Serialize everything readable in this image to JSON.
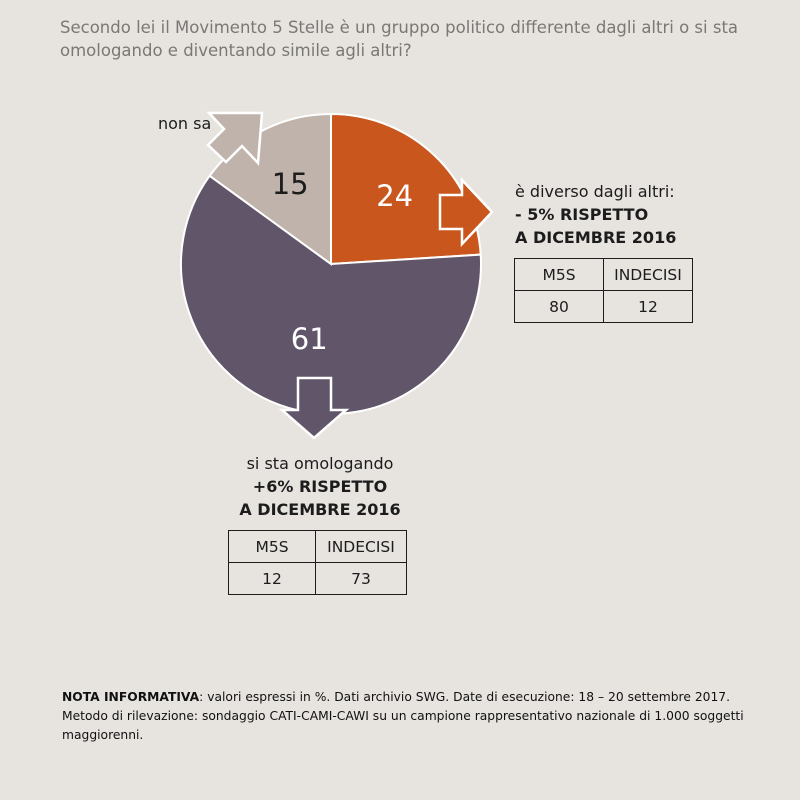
{
  "question": "Secondo lei il Movimento 5 Stelle è un gruppo politico differente dagli altri o si sta omologando e diventando simile agli altri?",
  "chart_data": {
    "type": "pie",
    "unit": "%",
    "slices": [
      {
        "label": "è diverso dagli altri",
        "value": 24,
        "color": "#c9561c"
      },
      {
        "label": "si sta omologando",
        "value": 61,
        "color": "#615569"
      },
      {
        "label": "non sa",
        "value": 15,
        "color": "#bfb3ab"
      }
    ]
  },
  "labels": {
    "non_sa": "non sa",
    "diverso": {
      "title": "è diverso dagli altri:",
      "change_line1": "- 5% RISPETTO",
      "change_line2": "A DICEMBRE 2016"
    },
    "omologando": {
      "title": "si sta omologando",
      "change_line1": "+6% RISPETTO",
      "change_line2": "A DICEMBRE 2016"
    }
  },
  "tables": {
    "diverso": {
      "headers": [
        "M5S",
        "INDECISI"
      ],
      "values": [
        "80",
        "12"
      ]
    },
    "omologando": {
      "headers": [
        "M5S",
        "INDECISI"
      ],
      "values": [
        "12",
        "73"
      ]
    }
  },
  "note": {
    "bold": "NOTA INFORMATIVA",
    "text": ": valori espressi in %. Dati archivio SWG. Date di esecuzione: 18 – 20 settembre 2017. Metodo di rilevazione: sondaggio CATI-CAMI-CAWI su un campione rappresentativo nazionale di 1.000 soggetti maggiorenni."
  }
}
